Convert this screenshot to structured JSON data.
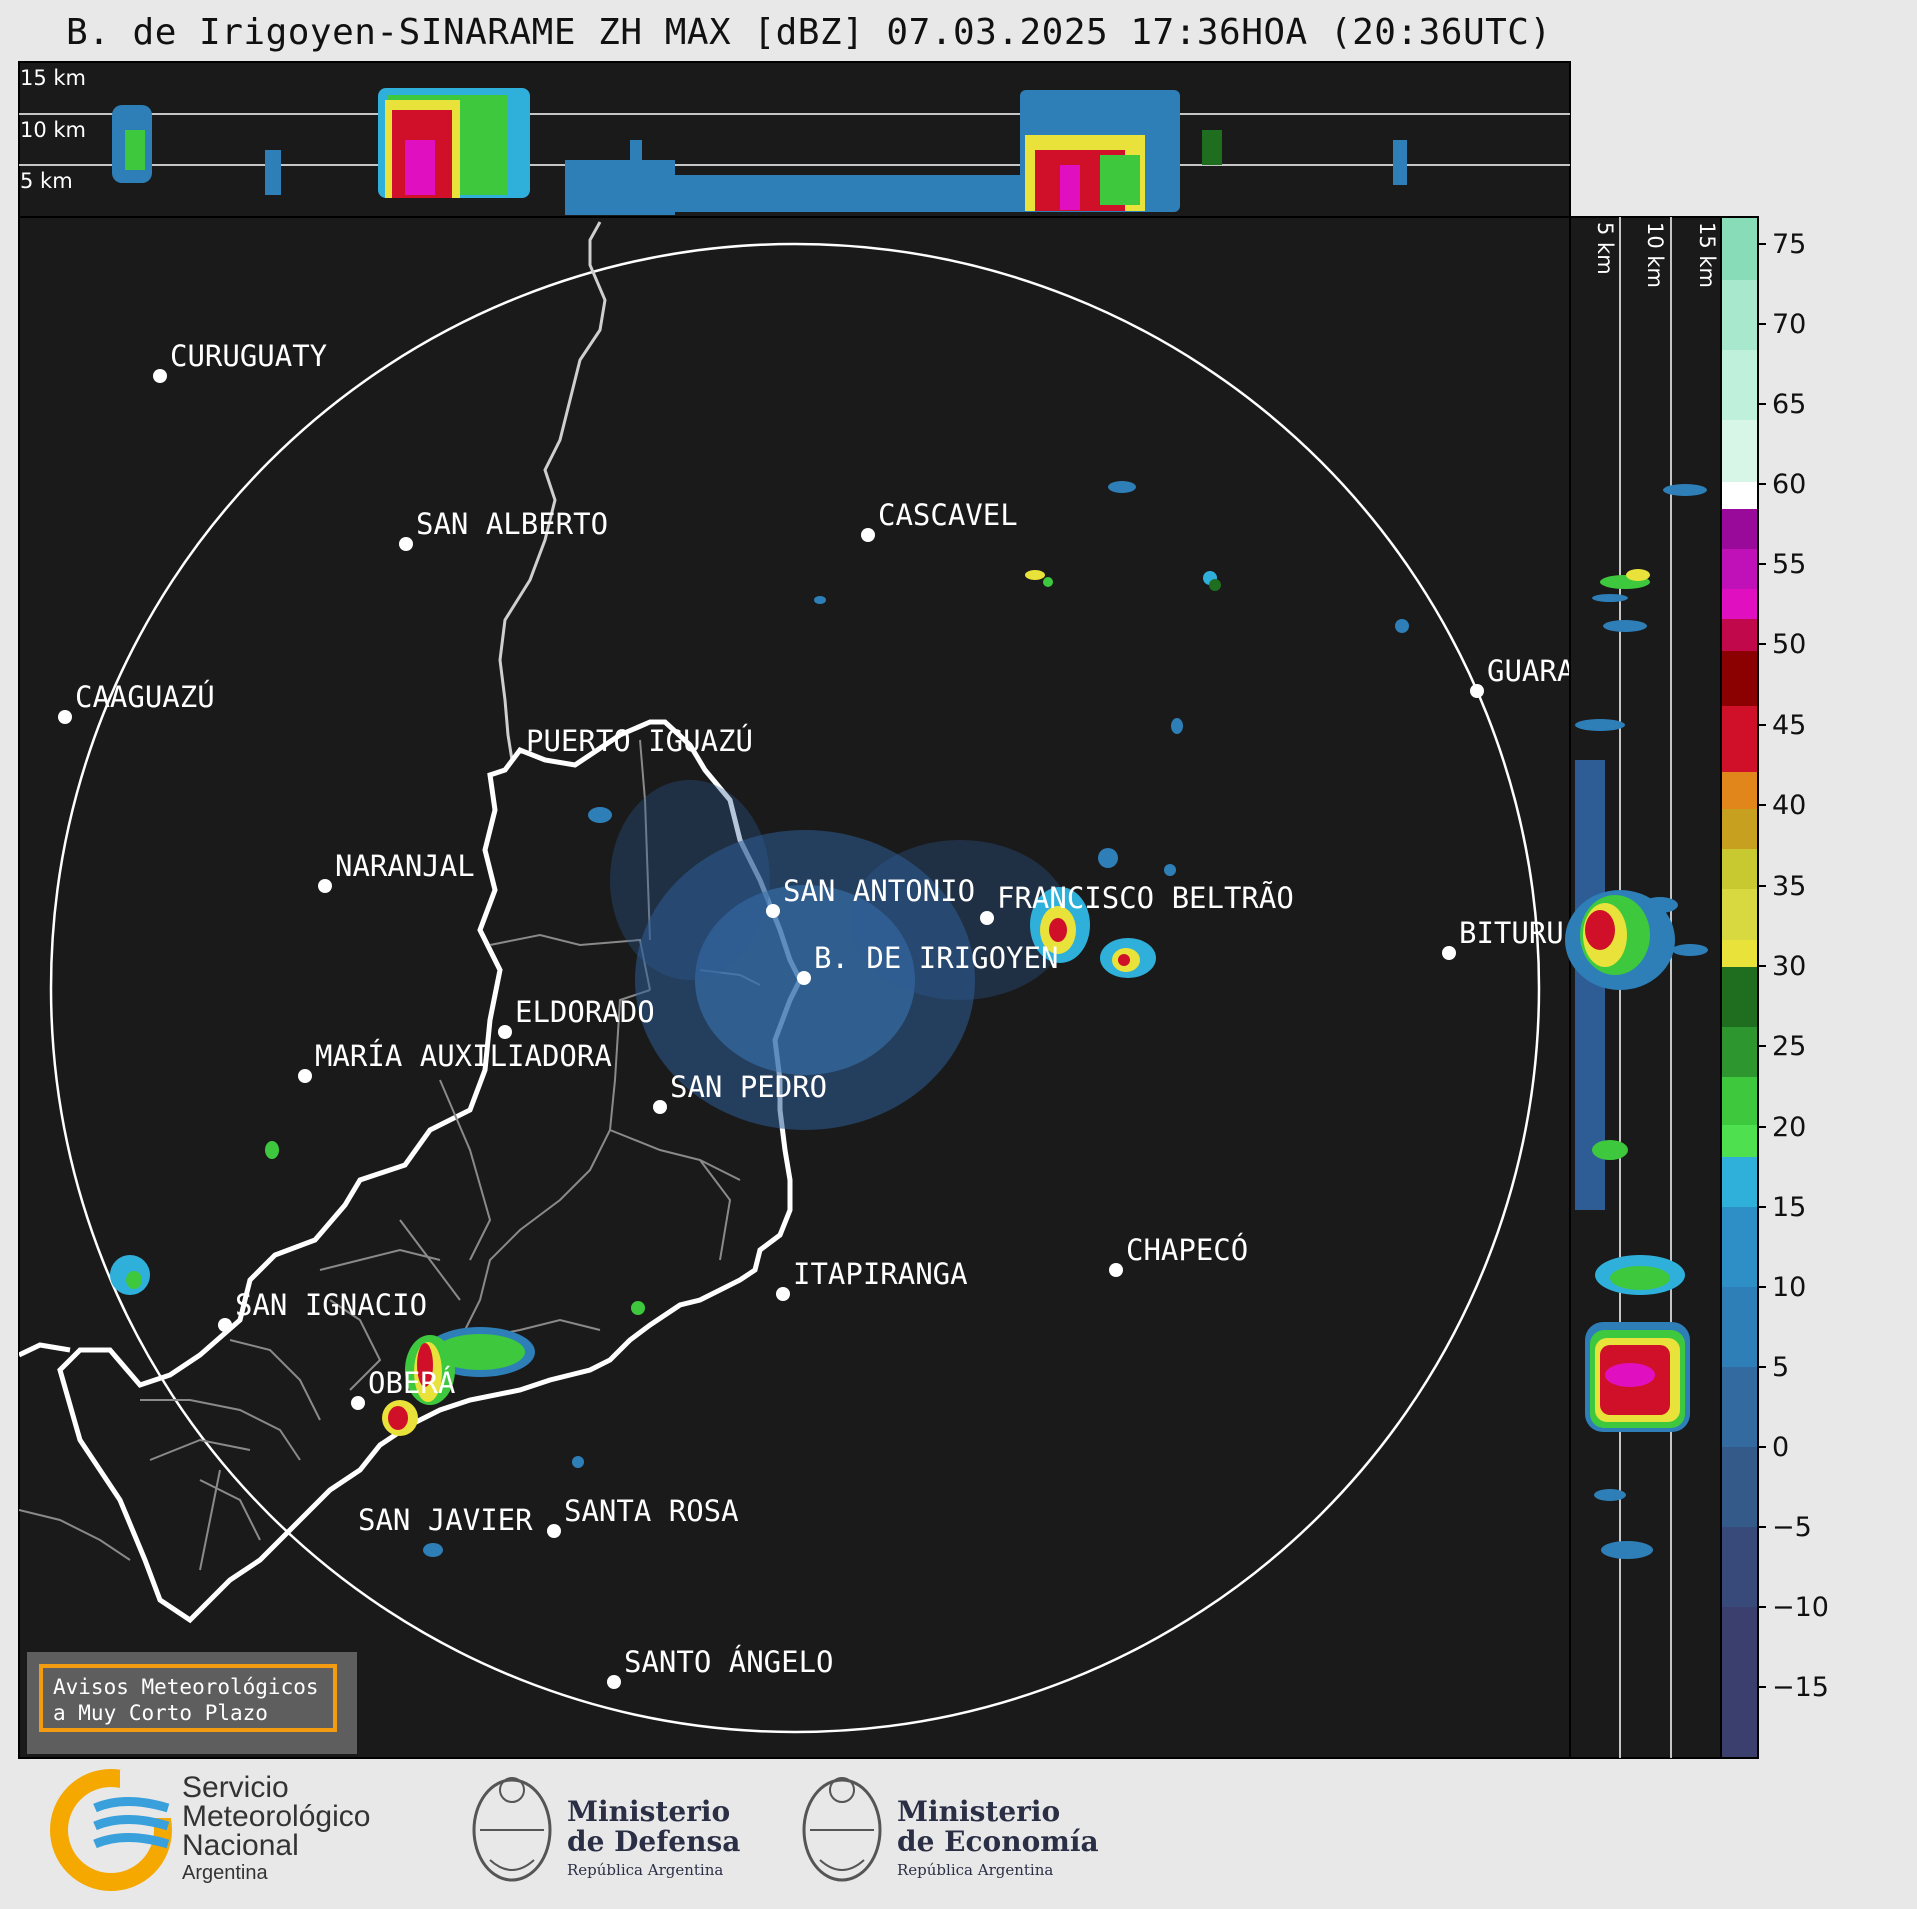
{
  "title": "B. de Irigoyen-SINARAME ZH MAX [dBZ] 07.03.2025 17:36HOA (20:36UTC)",
  "top_panel": {
    "labels": [
      "15 km",
      "10 km",
      "5 km"
    ]
  },
  "side_panel": {
    "labels": [
      "5 km",
      "10 km",
      "15 km"
    ]
  },
  "cities": [
    {
      "name": "CURUGUATY"
    },
    {
      "name": "SAN ALBERTO"
    },
    {
      "name": "CASCAVEL"
    },
    {
      "name": "CAAGUAZÚ"
    },
    {
      "name": "GUARA"
    },
    {
      "name": "PUERTO IGUAZÚ"
    },
    {
      "name": "NARANJAL"
    },
    {
      "name": "SAN ANTONIO"
    },
    {
      "name": "FRANCISCO BELTRÃO"
    },
    {
      "name": "BITURU"
    },
    {
      "name": "B. DE IRIGOYEN"
    },
    {
      "name": "ELDORADO"
    },
    {
      "name": "MARÍA AUXILIADORA"
    },
    {
      "name": "SAN PEDRO"
    },
    {
      "name": "CHAPECÓ"
    },
    {
      "name": "ITAPIRANGA"
    },
    {
      "name": "SAN IGNACIO"
    },
    {
      "name": "OBERÁ"
    },
    {
      "name": "SAN JAVIER"
    },
    {
      "name": "SANTA ROSA"
    },
    {
      "name": "SANTO ÁNGELO"
    }
  ],
  "colorbar": {
    "ticks": [
      "75",
      "70",
      "65",
      "60",
      "55",
      "50",
      "45",
      "40",
      "35",
      "30",
      "25",
      "20",
      "15",
      "10",
      "5",
      "0",
      "−5",
      "−10",
      "−15"
    ],
    "colors": {
      "neg": "#3b3f6e",
      "low": "#2e7fb8",
      "cyan": "#2fb0da",
      "green": "#3ec83e",
      "dkgreen": "#1f6e1f",
      "yellow": "#e8e23a",
      "orange": "#e0861a",
      "red": "#d01028",
      "dkred": "#8b0000",
      "magenta": "#e010c0",
      "purple": "#9a0a9a",
      "white": "#ffffff",
      "mint": "#88dcb8"
    }
  },
  "warning": {
    "line1": "Avisos Meteorológicos",
    "line2": "a Muy Corto Plazo"
  },
  "logos": {
    "smn": {
      "line1": "Servicio",
      "line2": "Meteorológico",
      "line3": "Nacional",
      "line4": "Argentina"
    },
    "defensa": {
      "line1": "Ministerio",
      "line2": "de Defensa",
      "line3": "República Argentina"
    },
    "economia": {
      "line1": "Ministerio",
      "line2": "de Economía",
      "line3": "República Argentina"
    }
  }
}
